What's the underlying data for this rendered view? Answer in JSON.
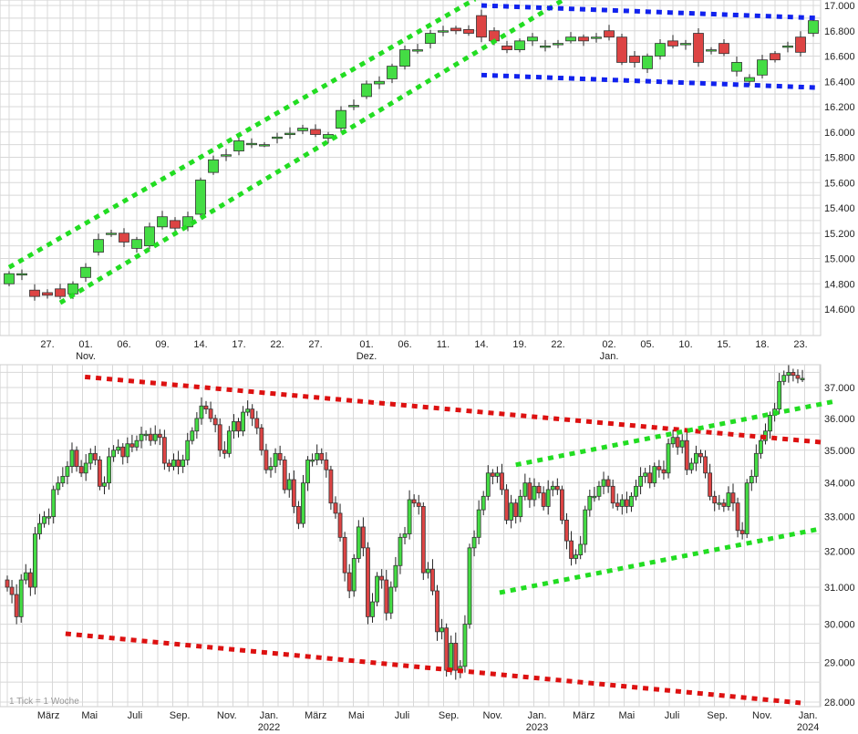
{
  "chart_data": [
    {
      "type": "candlestick",
      "interval": "daily",
      "y_scale": "linear",
      "ylim": [
        14.5,
        17.05
      ],
      "grid": true,
      "y_ticks": [
        "14.600",
        "14.800",
        "15.000",
        "15.200",
        "15.400",
        "15.600",
        "15.800",
        "16.000",
        "16.200",
        "16.400",
        "16.600",
        "16.800",
        "17.000"
      ],
      "y_tick_values": [
        14.6,
        14.8,
        15.0,
        15.2,
        15.4,
        15.6,
        15.8,
        16.0,
        16.2,
        16.4,
        16.6,
        16.8,
        17.0
      ],
      "x_ticks": [
        {
          "i": 3,
          "label": "27.",
          "sub": ""
        },
        {
          "i": 6,
          "label": "01.",
          "sub": "Nov."
        },
        {
          "i": 9,
          "label": "06.",
          "sub": ""
        },
        {
          "i": 12,
          "label": "09.",
          "sub": ""
        },
        {
          "i": 15,
          "label": "14.",
          "sub": ""
        },
        {
          "i": 18,
          "label": "17.",
          "sub": ""
        },
        {
          "i": 21,
          "label": "22.",
          "sub": ""
        },
        {
          "i": 24,
          "label": "27.",
          "sub": ""
        },
        {
          "i": 28,
          "label": "01.",
          "sub": "Dez."
        },
        {
          "i": 31,
          "label": "06.",
          "sub": ""
        },
        {
          "i": 34,
          "label": "11.",
          "sub": ""
        },
        {
          "i": 37,
          "label": "14.",
          "sub": ""
        },
        {
          "i": 40,
          "label": "19.",
          "sub": ""
        },
        {
          "i": 43,
          "label": "22.",
          "sub": ""
        },
        {
          "i": 47,
          "label": "02.",
          "sub": "Jan."
        },
        {
          "i": 50,
          "label": "05.",
          "sub": ""
        },
        {
          "i": 53,
          "label": "10.",
          "sub": ""
        },
        {
          "i": 56,
          "label": "15.",
          "sub": ""
        },
        {
          "i": 59,
          "label": "18.",
          "sub": ""
        },
        {
          "i": 62,
          "label": "23.",
          "sub": ""
        }
      ],
      "candles_open_close": [
        [
          14.8,
          14.88
        ],
        [
          14.87,
          14.88
        ],
        [
          14.75,
          14.7
        ],
        [
          14.73,
          14.71
        ],
        [
          14.76,
          14.7
        ],
        [
          14.72,
          14.8
        ],
        [
          14.85,
          14.93
        ],
        [
          15.05,
          15.15
        ],
        [
          15.19,
          15.2
        ],
        [
          15.2,
          15.13
        ],
        [
          15.08,
          15.15
        ],
        [
          15.1,
          15.25
        ],
        [
          15.25,
          15.33
        ],
        [
          15.3,
          15.24
        ],
        [
          15.25,
          15.33
        ],
        [
          15.35,
          15.62
        ],
        [
          15.68,
          15.78
        ],
        [
          15.81,
          15.82
        ],
        [
          15.85,
          15.93
        ],
        [
          15.9,
          15.91
        ],
        [
          15.9,
          15.9
        ],
        [
          15.95,
          15.96
        ],
        [
          15.98,
          15.99
        ],
        [
          16.01,
          16.03
        ],
        [
          16.02,
          15.98
        ],
        [
          15.95,
          15.98
        ],
        [
          16.03,
          16.17
        ],
        [
          16.2,
          16.21
        ],
        [
          16.28,
          16.38
        ],
        [
          16.38,
          16.4
        ],
        [
          16.42,
          16.52
        ],
        [
          16.52,
          16.65
        ],
        [
          16.64,
          16.65
        ],
        [
          16.7,
          16.78
        ],
        [
          16.79,
          16.8
        ],
        [
          16.82,
          16.8
        ],
        [
          16.81,
          16.78
        ],
        [
          16.92,
          16.75
        ],
        [
          16.8,
          16.72
        ],
        [
          16.68,
          16.65
        ],
        [
          16.65,
          16.72
        ],
        [
          16.72,
          16.75
        ],
        [
          16.67,
          16.68
        ],
        [
          16.69,
          16.7
        ],
        [
          16.72,
          16.75
        ],
        [
          16.75,
          16.72
        ],
        [
          16.74,
          16.75
        ],
        [
          16.8,
          16.75
        ],
        [
          16.75,
          16.55
        ],
        [
          16.6,
          16.55
        ],
        [
          16.5,
          16.6
        ],
        [
          16.6,
          16.7
        ],
        [
          16.72,
          16.68
        ],
        [
          16.69,
          16.7
        ],
        [
          16.78,
          16.55
        ],
        [
          16.64,
          16.65
        ],
        [
          16.7,
          16.62
        ],
        [
          16.48,
          16.55
        ],
        [
          16.4,
          16.43
        ],
        [
          16.45,
          16.57
        ],
        [
          16.62,
          16.57
        ],
        [
          16.67,
          16.68
        ],
        [
          16.75,
          16.63
        ],
        [
          16.78,
          16.88
        ]
      ],
      "trend_lines": [
        {
          "color": "#22dd22",
          "from": [
            0,
            14.93
          ],
          "to": [
            36.5,
            17.05
          ]
        },
        {
          "color": "#22dd22",
          "from": [
            4,
            14.65
          ],
          "to": [
            43.5,
            17.05
          ]
        },
        {
          "color": "#1122ee",
          "from": [
            37,
            17.0
          ],
          "to": [
            63.5,
            16.9
          ]
        },
        {
          "color": "#1122ee",
          "from": [
            37,
            16.45
          ],
          "to": [
            63.5,
            16.35
          ]
        }
      ]
    },
    {
      "type": "candlestick",
      "interval": "weekly",
      "note": "1 Tick = 1 Woche",
      "y_scale": "log",
      "ylim": [
        27.7,
        37.8
      ],
      "grid": true,
      "y_ticks": [
        "28.000",
        "29.000",
        "30.000",
        "31.000",
        "32.000",
        "33.000",
        "34.000",
        "35.000",
        "36.000",
        "37.000"
      ],
      "y_tick_values": [
        28,
        29,
        30,
        31,
        32,
        33,
        34,
        35,
        36,
        37
      ],
      "x_ticks": [
        {
          "i": 8.9,
          "label": "März",
          "sub": ""
        },
        {
          "i": 17.8,
          "label": "Mai",
          "sub": ""
        },
        {
          "i": 27.6,
          "label": "Juli",
          "sub": ""
        },
        {
          "i": 37.3,
          "label": "Sep.",
          "sub": ""
        },
        {
          "i": 47.5,
          "label": "Nov.",
          "sub": ""
        },
        {
          "i": 56.6,
          "label": "Jan.",
          "sub": "2022"
        },
        {
          "i": 66.7,
          "label": "März",
          "sub": ""
        },
        {
          "i": 75.5,
          "label": "Mai",
          "sub": ""
        },
        {
          "i": 85.4,
          "label": "Juli",
          "sub": ""
        },
        {
          "i": 95.5,
          "label": "Sep.",
          "sub": ""
        },
        {
          "i": 105,
          "label": "Nov.",
          "sub": ""
        },
        {
          "i": 114.6,
          "label": "Jan.",
          "sub": "2023"
        },
        {
          "i": 124.7,
          "label": "März",
          "sub": ""
        },
        {
          "i": 134,
          "label": "Mai",
          "sub": ""
        },
        {
          "i": 143.8,
          "label": "Juli",
          "sub": ""
        },
        {
          "i": 153.6,
          "label": "Sep.",
          "sub": ""
        },
        {
          "i": 163.3,
          "label": "Nov.",
          "sub": ""
        },
        {
          "i": 173.2,
          "label": "Jan.",
          "sub": "2024"
        }
      ],
      "closes": [
        31.0,
        30.8,
        30.2,
        31.2,
        31.4,
        31.0,
        32.5,
        32.8,
        33.0,
        33.0,
        33.8,
        34.0,
        34.2,
        34.5,
        35.0,
        34.5,
        34.3,
        34.6,
        34.9,
        34.7,
        33.9,
        34.0,
        34.8,
        35.0,
        35.1,
        34.8,
        35.2,
        35.1,
        35.3,
        35.5,
        35.5,
        35.3,
        35.5,
        35.4,
        34.6,
        34.5,
        34.7,
        34.5,
        34.7,
        35.3,
        35.6,
        36.0,
        36.4,
        36.3,
        36.0,
        35.8,
        35.0,
        34.9,
        35.6,
        35.9,
        35.6,
        36.2,
        36.3,
        36.0,
        35.7,
        35.0,
        34.4,
        34.5,
        34.9,
        34.7,
        33.8,
        34.1,
        33.3,
        32.8,
        34.0,
        34.7,
        34.7,
        34.9,
        34.7,
        34.4,
        33.4,
        33.1,
        32.4,
        31.4,
        30.9,
        31.8,
        32.7,
        32.1,
        30.2,
        30.6,
        31.3,
        31.2,
        30.3,
        31.0,
        31.6,
        32.4,
        32.5,
        33.5,
        33.4,
        33.3,
        31.4,
        31.5,
        30.9,
        29.8,
        29.9,
        28.8,
        29.5,
        28.8,
        28.9,
        30.0,
        32.1,
        32.4,
        33.2,
        33.6,
        34.3,
        34.2,
        34.3,
        33.8,
        32.9,
        33.4,
        33.0,
        33.6,
        34.0,
        33.5,
        33.9,
        33.7,
        33.3,
        33.8,
        33.9,
        33.8,
        32.9,
        32.3,
        31.8,
        31.9,
        32.2,
        33.2,
        33.6,
        33.6,
        33.9,
        34.1,
        33.9,
        33.4,
        33.3,
        33.5,
        33.3,
        33.6,
        33.9,
        34.2,
        34.3,
        34.0,
        34.5,
        34.4,
        34.3,
        35.2,
        35.4,
        35.1,
        35.3,
        34.4,
        34.6,
        34.9,
        34.8,
        34.3,
        33.6,
        33.4,
        33.4,
        33.3,
        33.7,
        33.4,
        32.6,
        32.5,
        34.0,
        34.2,
        34.9,
        35.3,
        35.6,
        36.1,
        36.3,
        37.2,
        37.4,
        37.5,
        37.4,
        37.3,
        37.3
      ],
      "trend_lines": [
        {
          "color": "#dd1111",
          "from": [
            16.8,
            37.35
          ],
          "to": [
            176,
            35.25
          ]
        },
        {
          "color": "#dd1111",
          "from": [
            12.6,
            29.75
          ],
          "to": [
            171.6,
            27.98
          ]
        },
        {
          "color": "#22dd22",
          "from": [
            110,
            34.55
          ],
          "to": [
            179,
            36.55
          ]
        },
        {
          "color": "#22dd22",
          "from": [
            106.5,
            30.85
          ],
          "to": [
            176,
            32.65
          ]
        }
      ]
    }
  ],
  "colors": {
    "up": "#44dd44",
    "down": "#dd4444",
    "grid": "#d8d8d8"
  }
}
